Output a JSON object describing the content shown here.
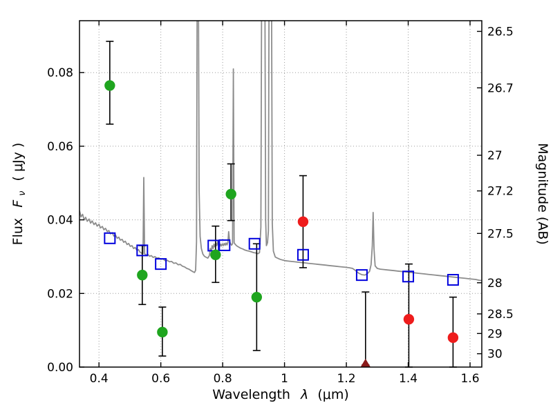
{
  "chart_data": {
    "type": "scatter",
    "title": "",
    "xlabel_word": "Wavelength",
    "xlabel_symbol": "λ",
    "xlabel_unit": "(μm)",
    "ylabel_word": "Flux",
    "ylabel_symbol": "F",
    "ylabel_sub": "ν",
    "ylabel_unit": "( μJy )",
    "y2label": "Magnitude (AB)",
    "xlim": [
      0.337,
      1.638
    ],
    "ylim": [
      0,
      0.0941
    ],
    "grid": true,
    "legend": "none",
    "mag_zero_point": 23.9,
    "xtick_values": [
      0.4,
      0.6,
      0.8,
      1.0,
      1.2,
      1.4,
      1.6
    ],
    "xtick_labels": [
      "0.4",
      "0.6",
      "0.8",
      "1",
      "1.2",
      "1.4",
      "1.6"
    ],
    "ytick_values": [
      0.0,
      0.02,
      0.04,
      0.06,
      0.08
    ],
    "ytick_labels": [
      "0.00",
      "0.02",
      "0.04",
      "0.06",
      "0.08"
    ],
    "y2tick_mags": [
      26.5,
      26.7,
      27.0,
      27.2,
      27.5,
      28.0,
      28.5,
      29.0,
      30.0
    ],
    "y2tick_labels": [
      "26.5",
      "26.7",
      "27",
      "27.2",
      "27.5",
      "28",
      "28.5",
      "29",
      "30"
    ],
    "colors": {
      "spectrum": "#8c8c8c",
      "model_photometry": "#0000dd",
      "observed_optical": "#1fa51f",
      "observed_ir": "#ee1c1c",
      "upper_limit": "#8b1a1a",
      "errorbar": "#000000"
    },
    "series": [
      {
        "name": "model-spectrum",
        "type": "line",
        "points": [
          [
            0.337,
            0.0425
          ],
          [
            0.342,
            0.0408
          ],
          [
            0.347,
            0.0415
          ],
          [
            0.352,
            0.04
          ],
          [
            0.357,
            0.0407
          ],
          [
            0.362,
            0.0396
          ],
          [
            0.368,
            0.0402
          ],
          [
            0.373,
            0.0391
          ],
          [
            0.378,
            0.0397
          ],
          [
            0.384,
            0.0387
          ],
          [
            0.389,
            0.0392
          ],
          [
            0.394,
            0.0383
          ],
          [
            0.4,
            0.0388
          ],
          [
            0.405,
            0.0378
          ],
          [
            0.411,
            0.0382
          ],
          [
            0.416,
            0.0373
          ],
          [
            0.421,
            0.0377
          ],
          [
            0.427,
            0.0368
          ],
          [
            0.432,
            0.0371
          ],
          [
            0.437,
            0.0362
          ],
          [
            0.443,
            0.0365
          ],
          [
            0.448,
            0.0356
          ],
          [
            0.453,
            0.0359
          ],
          [
            0.459,
            0.035
          ],
          [
            0.464,
            0.0353
          ],
          [
            0.469,
            0.0345
          ],
          [
            0.475,
            0.0347
          ],
          [
            0.48,
            0.0339
          ],
          [
            0.485,
            0.0342
          ],
          [
            0.491,
            0.0333
          ],
          [
            0.496,
            0.0336
          ],
          [
            0.501,
            0.0328
          ],
          [
            0.507,
            0.033
          ],
          [
            0.512,
            0.0322
          ],
          [
            0.517,
            0.0325
          ],
          [
            0.523,
            0.0317
          ],
          [
            0.528,
            0.0319
          ],
          [
            0.533,
            0.0312
          ],
          [
            0.539,
            0.0309
          ],
          [
            0.5425,
            0.0308
          ],
          [
            0.545,
            0.0515
          ],
          [
            0.5475,
            0.0308
          ],
          [
            0.553,
            0.0304
          ],
          [
            0.558,
            0.0306
          ],
          [
            0.564,
            0.0301
          ],
          [
            0.569,
            0.0303
          ],
          [
            0.575,
            0.0298
          ],
          [
            0.581,
            0.03
          ],
          [
            0.587,
            0.0296
          ],
          [
            0.593,
            0.0297
          ],
          [
            0.6,
            0.0293
          ],
          [
            0.607,
            0.0294
          ],
          [
            0.614,
            0.0289
          ],
          [
            0.621,
            0.029
          ],
          [
            0.628,
            0.0286
          ],
          [
            0.635,
            0.0287
          ],
          [
            0.642,
            0.0282
          ],
          [
            0.649,
            0.0283
          ],
          [
            0.656,
            0.0278
          ],
          [
            0.663,
            0.0279
          ],
          [
            0.67,
            0.0274
          ],
          [
            0.677,
            0.0272
          ],
          [
            0.684,
            0.0268
          ],
          [
            0.691,
            0.0266
          ],
          [
            0.698,
            0.0262
          ],
          [
            0.704,
            0.0259
          ],
          [
            0.709,
            0.0257
          ],
          [
            0.7125,
            0.0263
          ],
          [
            0.7155,
            0.034
          ],
          [
            0.718,
            0.115
          ],
          [
            0.721,
            0.115
          ],
          [
            0.724,
            0.048
          ],
          [
            0.727,
            0.0355
          ],
          [
            0.731,
            0.0322
          ],
          [
            0.736,
            0.0307
          ],
          [
            0.741,
            0.0301
          ],
          [
            0.747,
            0.0298
          ],
          [
            0.752,
            0.0296
          ],
          [
            0.757,
            0.0303
          ],
          [
            0.76,
            0.0322
          ],
          [
            0.763,
            0.0315
          ],
          [
            0.766,
            0.033
          ],
          [
            0.769,
            0.0322
          ],
          [
            0.772,
            0.0334
          ],
          [
            0.775,
            0.0327
          ],
          [
            0.778,
            0.0338
          ],
          [
            0.781,
            0.033
          ],
          [
            0.784,
            0.034
          ],
          [
            0.787,
            0.0331
          ],
          [
            0.79,
            0.0327
          ],
          [
            0.793,
            0.0334
          ],
          [
            0.796,
            0.0329
          ],
          [
            0.799,
            0.0335
          ],
          [
            0.802,
            0.033
          ],
          [
            0.805,
            0.0336
          ],
          [
            0.808,
            0.0331
          ],
          [
            0.811,
            0.0337
          ],
          [
            0.814,
            0.0332
          ],
          [
            0.817,
            0.0339
          ],
          [
            0.8195,
            0.0368
          ],
          [
            0.822,
            0.0344
          ],
          [
            0.8245,
            0.0337
          ],
          [
            0.8285,
            0.0331
          ],
          [
            0.832,
            0.0335
          ],
          [
            0.8345,
            0.081
          ],
          [
            0.837,
            0.0338
          ],
          [
            0.841,
            0.0333
          ],
          [
            0.846,
            0.0329
          ],
          [
            0.852,
            0.0326
          ],
          [
            0.858,
            0.0323
          ],
          [
            0.865,
            0.0321
          ],
          [
            0.872,
            0.0318
          ],
          [
            0.879,
            0.0316
          ],
          [
            0.886,
            0.0315
          ],
          [
            0.893,
            0.0313
          ],
          [
            0.9,
            0.0311
          ],
          [
            0.907,
            0.031
          ],
          [
            0.914,
            0.0308
          ],
          [
            0.919,
            0.0311
          ],
          [
            0.9235,
            0.038
          ],
          [
            0.9265,
            0.115
          ],
          [
            0.936,
            0.115
          ],
          [
            0.939,
            0.04
          ],
          [
            0.9415,
            0.033
          ],
          [
            0.945,
            0.0338
          ],
          [
            0.948,
            0.037
          ],
          [
            0.9505,
            0.115
          ],
          [
            0.9575,
            0.115
          ],
          [
            0.9605,
            0.039
          ],
          [
            0.964,
            0.0315
          ],
          [
            0.97,
            0.0299
          ],
          [
            0.977,
            0.0296
          ],
          [
            0.985,
            0.0293
          ],
          [
            0.993,
            0.0291
          ],
          [
            1.002,
            0.0289
          ],
          [
            1.012,
            0.0288
          ],
          [
            1.022,
            0.0287
          ],
          [
            1.033,
            0.0286
          ],
          [
            1.044,
            0.0285
          ],
          [
            1.055,
            0.0284
          ],
          [
            1.066,
            0.0283
          ],
          [
            1.077,
            0.0282
          ],
          [
            1.088,
            0.0281
          ],
          [
            1.099,
            0.028
          ],
          [
            1.11,
            0.0279
          ],
          [
            1.121,
            0.0278
          ],
          [
            1.132,
            0.0277
          ],
          [
            1.143,
            0.0276
          ],
          [
            1.154,
            0.0275
          ],
          [
            1.165,
            0.0274
          ],
          [
            1.176,
            0.0273
          ],
          [
            1.187,
            0.0272
          ],
          [
            1.198,
            0.0271
          ],
          [
            1.209,
            0.027
          ],
          [
            1.22,
            0.0268
          ],
          [
            1.23,
            0.0262
          ],
          [
            1.24,
            0.0255
          ],
          [
            1.25,
            0.0251
          ],
          [
            1.26,
            0.025
          ],
          [
            1.268,
            0.0254
          ],
          [
            1.275,
            0.026
          ],
          [
            1.28,
            0.0278
          ],
          [
            1.284,
            0.033
          ],
          [
            1.2865,
            0.042
          ],
          [
            1.2895,
            0.032
          ],
          [
            1.293,
            0.0275
          ],
          [
            1.3,
            0.0268
          ],
          [
            1.31,
            0.0266
          ],
          [
            1.321,
            0.0265
          ],
          [
            1.332,
            0.0264
          ],
          [
            1.343,
            0.0263
          ],
          [
            1.354,
            0.0262
          ],
          [
            1.365,
            0.0261
          ],
          [
            1.376,
            0.026
          ],
          [
            1.387,
            0.0259
          ],
          [
            1.398,
            0.0258
          ],
          [
            1.409,
            0.0257
          ],
          [
            1.42,
            0.0256
          ],
          [
            1.431,
            0.0255
          ],
          [
            1.442,
            0.0254
          ],
          [
            1.453,
            0.0253
          ],
          [
            1.464,
            0.0252
          ],
          [
            1.475,
            0.0251
          ],
          [
            1.486,
            0.025
          ],
          [
            1.497,
            0.0249
          ],
          [
            1.508,
            0.0248
          ],
          [
            1.519,
            0.0247
          ],
          [
            1.53,
            0.0246
          ],
          [
            1.541,
            0.0245
          ],
          [
            1.552,
            0.0244
          ],
          [
            1.563,
            0.0243
          ],
          [
            1.574,
            0.0242
          ],
          [
            1.585,
            0.0241
          ],
          [
            1.596,
            0.024
          ],
          [
            1.607,
            0.0239
          ],
          [
            1.618,
            0.0238
          ],
          [
            1.629,
            0.0236
          ],
          [
            1.638,
            0.0235
          ]
        ]
      },
      {
        "name": "model-photometry",
        "type": "square-open",
        "size": 15,
        "points": [
          {
            "x": 0.435,
            "y": 0.035
          },
          {
            "x": 0.54,
            "y": 0.0317
          },
          {
            "x": 0.6,
            "y": 0.028
          },
          {
            "x": 0.77,
            "y": 0.033
          },
          {
            "x": 0.806,
            "y": 0.0331
          },
          {
            "x": 0.903,
            "y": 0.0335
          },
          {
            "x": 1.06,
            "y": 0.0305
          },
          {
            "x": 1.25,
            "y": 0.025
          },
          {
            "x": 1.4,
            "y": 0.0246
          },
          {
            "x": 1.545,
            "y": 0.0237
          }
        ]
      },
      {
        "name": "observed-optical",
        "type": "circle",
        "size": 7.2,
        "points": [
          {
            "x": 0.435,
            "y": 0.0765,
            "err_lo": 0.0105,
            "err_hi": 0.012
          },
          {
            "x": 0.54,
            "y": 0.025,
            "err_lo": 0.008,
            "err_hi": 0.008
          },
          {
            "x": 0.605,
            "y": 0.0095,
            "err_lo": 0.0065,
            "err_hi": 0.0068
          },
          {
            "x": 0.777,
            "y": 0.0305,
            "err_lo": 0.0075,
            "err_hi": 0.0078
          },
          {
            "x": 0.827,
            "y": 0.047,
            "err_lo": 0.0072,
            "err_hi": 0.0082
          },
          {
            "x": 0.91,
            "y": 0.019,
            "err_lo": 0.0145,
            "err_hi": 0.0145
          }
        ]
      },
      {
        "name": "observed-ir",
        "type": "circle",
        "size": 7.2,
        "points": [
          {
            "x": 1.06,
            "y": 0.0395,
            "err_lo": 0.0125,
            "err_hi": 0.0125
          },
          {
            "x": 1.402,
            "y": 0.013,
            "err_lo": 0.013,
            "err_hi": 0.015
          },
          {
            "x": 1.545,
            "y": 0.008,
            "err_lo": 0.008,
            "err_hi": 0.011
          }
        ]
      },
      {
        "name": "upper-limit",
        "type": "triangle",
        "size": 7,
        "points": [
          {
            "x": 1.262,
            "y": 0.0006,
            "err_lo": 0.0,
            "err_hi": 0.0198
          }
        ]
      }
    ]
  }
}
